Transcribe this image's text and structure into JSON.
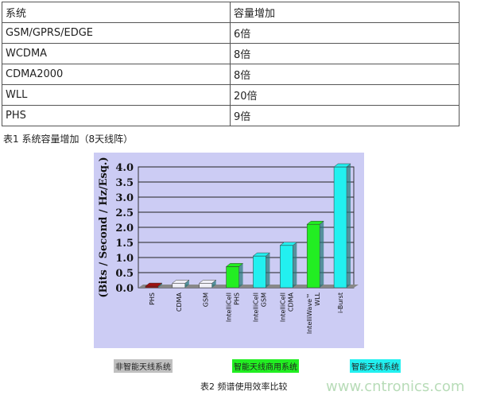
{
  "table": {
    "headers": [
      "系统",
      "容量增加"
    ],
    "rows": [
      [
        "GSM/GPRS/EDGE",
        "6倍"
      ],
      [
        "WCDMA",
        "8倍"
      ],
      [
        "CDMA2000",
        "8倍"
      ],
      [
        "WLL",
        "20倍"
      ],
      [
        "PHS",
        "9倍"
      ]
    ]
  },
  "caption1": "表1 系统容量增加（8天线阵）",
  "chart_data": {
    "type": "bar",
    "ylabel": "(Bits / Second / Hz/Esq.)",
    "ylim": [
      0,
      4
    ],
    "yticks": [
      "0.0",
      "0.5",
      "1.0",
      "1.5",
      "2.0",
      "2.5",
      "3.0",
      "3.5",
      "4.0"
    ],
    "categories": [
      "PHS",
      "CDMA",
      "GSM",
      "IntelliCell PHS",
      "IntelliCell GSM",
      "IntelliCell CDMA",
      "IntelliWave™ WLL",
      "i-Burst"
    ],
    "values": [
      0.05,
      0.15,
      0.15,
      0.7,
      1.05,
      1.4,
      2.1,
      4.0
    ],
    "colors": [
      "#a01010",
      "#f0f0f8",
      "#f0f0f8",
      "#22ee22",
      "#22f0f0",
      "#22f0f0",
      "#22ee22",
      "#22f0f0"
    ],
    "grid": true,
    "legend": [
      {
        "label": "非智能天线系统",
        "color": "#c0c0c0"
      },
      {
        "label": "智能天线商用系统",
        "color": "#22ee22"
      },
      {
        "label": "智能天线系统",
        "color": "#22f0f0"
      }
    ]
  },
  "caption2": "表2 频谱使用效率比较",
  "watermark": "www.cntronics.com"
}
